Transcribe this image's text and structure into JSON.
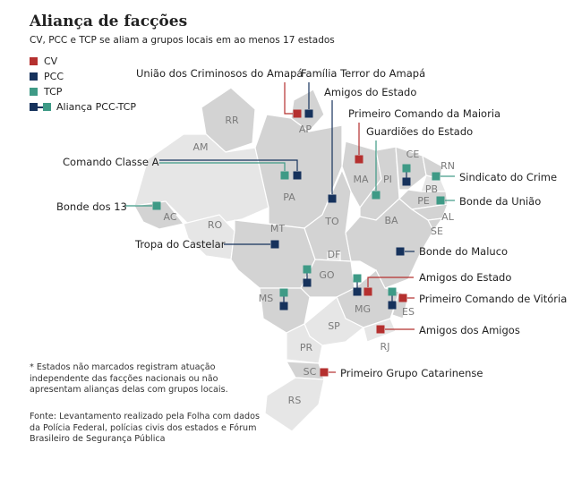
{
  "title": "Aliança de facções",
  "subtitle": "CV, PCC e TCP se aliam a grupos locais em ao menos 17 estados",
  "legend": [
    {
      "key": "CV",
      "label": "CV"
    },
    {
      "key": "PCC",
      "label": "PCC"
    },
    {
      "key": "TCP",
      "label": "TCP"
    },
    {
      "key": "PCC-TCP",
      "label": "Aliança PCC-TCP"
    }
  ],
  "colors": {
    "CV": "#b5302f",
    "PCC": "#16325c",
    "TCP": "#3e9a86",
    "state": "#d3d3d3",
    "state_light": "#e6e6e6"
  },
  "states": [
    "RR",
    "AM",
    "AP",
    "PA",
    "AC",
    "RO",
    "MT",
    "TO",
    "MA",
    "PI",
    "CE",
    "RN",
    "PB",
    "PE",
    "AL",
    "SE",
    "BA",
    "DF",
    "GO",
    "MG",
    "ES",
    "MS",
    "SP",
    "RJ",
    "PR",
    "SC",
    "RS"
  ],
  "callouts": [
    {
      "state": "AP",
      "faction": "CV",
      "label": "União dos Criminosos do Amapá"
    },
    {
      "state": "AP",
      "faction": "PCC",
      "label": "Família Terror do Amapá"
    },
    {
      "state": "PA",
      "faction": "PCC-TCP",
      "label": "Comando Classe A"
    },
    {
      "state": "TO",
      "faction": "PCC",
      "label": "Amigos do Estado"
    },
    {
      "state": "MA",
      "faction": "CV",
      "label": "Primeiro Comando da Maioria"
    },
    {
      "state": "PI",
      "faction": "TCP",
      "label": "Guardiões do Estado"
    },
    {
      "state": "RN",
      "faction": "TCP",
      "label": "Sindicato do Crime"
    },
    {
      "state": "PE",
      "faction": "TCP",
      "label": "Bonde da União"
    },
    {
      "state": "AC",
      "faction": "TCP",
      "label": "Bonde dos 13"
    },
    {
      "state": "MT",
      "faction": "PCC",
      "label": "Tropa do Castelar"
    },
    {
      "state": "BA",
      "faction": "PCC",
      "label": "Bonde do Maluco"
    },
    {
      "state": "MG",
      "faction": "CV",
      "label": "Amigos do Estado"
    },
    {
      "state": "ES",
      "faction": "CV",
      "label": "Primeiro Comando de Vitória"
    },
    {
      "state": "RJ",
      "faction": "CV",
      "label": "Amigos dos Amigos"
    },
    {
      "state": "SC",
      "faction": "CV",
      "label": "Primeiro Grupo Catarinense"
    }
  ],
  "alliances": [
    "CE",
    "GO",
    "MG",
    "ES",
    "MS"
  ],
  "notes": {
    "asterisk": "* Estados não marcados registram atuação independente das facções nacionais ou não apresentam alianças delas com grupos locais.",
    "source": "Fonte: Levantamento realizado pela Folha com dados da Polícia Federal, polícias civis dos estados e Fórum Brasileiro de Segurança Pública"
  }
}
